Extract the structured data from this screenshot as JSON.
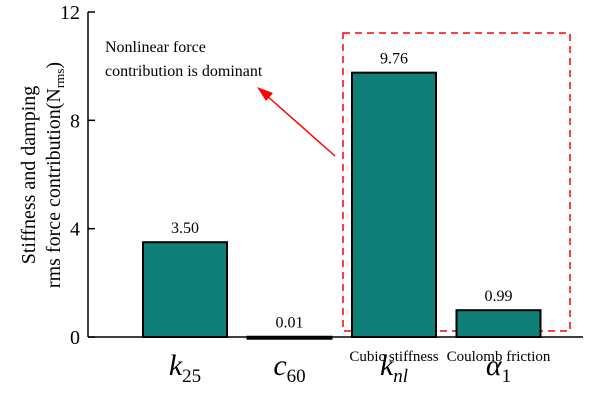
{
  "chart_data": {
    "type": "bar",
    "categories": [
      {
        "symbol": "k",
        "subscript": "25"
      },
      {
        "symbol": "c",
        "subscript": "60"
      },
      {
        "symbol": "k",
        "subscript": "nl"
      },
      {
        "symbol": "α",
        "subscript": "1"
      }
    ],
    "category_descriptions": [
      null,
      null,
      "Cubic stiffness",
      "Coulomb friction"
    ],
    "values": [
      3.5,
      0.01,
      9.76,
      0.99
    ],
    "value_labels": [
      "3.50",
      "0.01",
      "9.76",
      "0.99"
    ],
    "color": "#0f7f78",
    "ylim": [
      0,
      12
    ],
    "yticks": [
      0,
      4,
      8,
      12
    ],
    "ylabel": {
      "line1": "Stiffness and damping",
      "line2": "rms force contribution(N",
      "unit_subscript": "rms",
      "line2_end": ")"
    },
    "annotation": [
      "Nonlinear force",
      "contribution is dominant"
    ],
    "annotation_color": "#ff0000"
  }
}
